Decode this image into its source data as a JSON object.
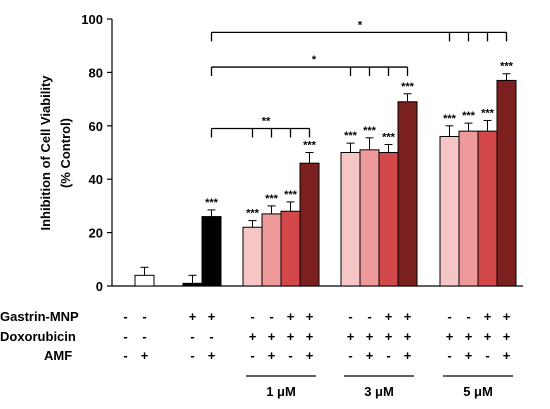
{
  "chart_data": {
    "type": "bar",
    "ylabel": "Inhibition of Cell Viability\n(% Control)",
    "ylabel_lines": [
      "Inhibition of Cell Viability",
      "(% Control)"
    ],
    "ylim": [
      0,
      100
    ],
    "yticks": [
      0,
      20,
      40,
      60,
      80,
      100
    ],
    "grid": false,
    "colors": {
      "white": "#ffffff",
      "black": "#000000",
      "light_pink": "#f6c6c6",
      "pink": "#ee9a9a",
      "red": "#d34848",
      "dark_red": "#7c1f1f"
    },
    "bars": [
      {
        "value": 0,
        "error": 0,
        "color": "white",
        "sig": ""
      },
      {
        "value": 4,
        "error": 3,
        "color": "white",
        "sig": ""
      },
      {
        "value": 1,
        "error": 3,
        "color": "black",
        "sig": ""
      },
      {
        "value": 26,
        "error": 2.5,
        "color": "black",
        "sig": "***"
      },
      {
        "value": 22,
        "error": 2.5,
        "color": "light_pink",
        "sig": "***"
      },
      {
        "value": 27,
        "error": 3,
        "color": "pink",
        "sig": "***"
      },
      {
        "value": 28,
        "error": 3.5,
        "color": "red",
        "sig": "***"
      },
      {
        "value": 46,
        "error": 4,
        "color": "dark_red",
        "sig": "***"
      },
      {
        "value": 50,
        "error": 3.5,
        "color": "light_pink",
        "sig": "***"
      },
      {
        "value": 51,
        "error": 4.5,
        "color": "pink",
        "sig": "***"
      },
      {
        "value": 50,
        "error": 3,
        "color": "red",
        "sig": "***"
      },
      {
        "value": 69,
        "error": 3,
        "color": "dark_red",
        "sig": "***"
      },
      {
        "value": 56,
        "error": 4,
        "color": "light_pink",
        "sig": "***"
      },
      {
        "value": 58,
        "error": 3,
        "color": "pink",
        "sig": "***"
      },
      {
        "value": 58,
        "error": 4,
        "color": "red",
        "sig": "***"
      },
      {
        "value": 77,
        "error": 2.5,
        "color": "dark_red",
        "sig": "***"
      }
    ],
    "brackets": [
      {
        "from": 3,
        "to": [
          15
        ],
        "drops": [
          3,
          12,
          13,
          14,
          15
        ],
        "y": 95,
        "label": "*"
      },
      {
        "from": 3,
        "to": [
          11
        ],
        "drops": [
          3,
          8,
          9,
          10,
          11
        ],
        "y": 82,
        "label": "*"
      },
      {
        "from": 3,
        "to": [
          7
        ],
        "drops": [
          3,
          4,
          5,
          6,
          7
        ],
        "y": 59,
        "label": "**"
      }
    ],
    "rows": [
      {
        "label": "Gastrin-MNP",
        "values": [
          "-",
          "-",
          "+",
          "+",
          "-",
          "-",
          "+",
          "+",
          "-",
          "-",
          "+",
          "+",
          "-",
          "-",
          "+",
          "+"
        ]
      },
      {
        "label": "Doxorubicin",
        "values": [
          "-",
          "-",
          "-",
          "-",
          "+",
          "+",
          "+",
          "+",
          "+",
          "+",
          "+",
          "+",
          "+",
          "+",
          "+",
          "+"
        ]
      },
      {
        "label": "AMF",
        "values": [
          "-",
          "+",
          "-",
          "+",
          "-",
          "+",
          "-",
          "+",
          "-",
          "+",
          "-",
          "+",
          "-",
          "+",
          "-",
          "+"
        ]
      }
    ],
    "concentrations": [
      {
        "label": "1 μM",
        "bars": [
          4,
          7
        ]
      },
      {
        "label": "3 μM",
        "bars": [
          8,
          11
        ]
      },
      {
        "label": "5 μM",
        "bars": [
          12,
          15
        ]
      }
    ]
  }
}
